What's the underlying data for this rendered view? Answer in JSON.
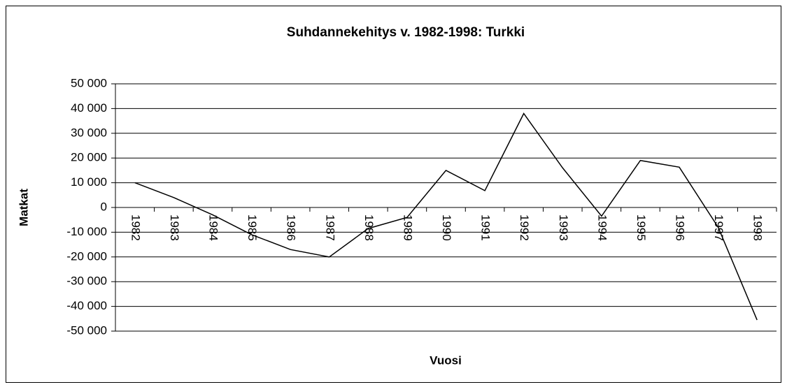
{
  "chart_data": {
    "type": "line",
    "title": "Suhdannekehitys v. 1982-1998: Turkki",
    "x_label": "Vuosi",
    "y_label": "Matkat",
    "categories": [
      "1982",
      "1983",
      "1984",
      "1985",
      "1986",
      "1987",
      "1988",
      "1989",
      "1990",
      "1991",
      "1992",
      "1993",
      "1994",
      "1995",
      "1996",
      "1997",
      "1998"
    ],
    "series": [
      {
        "name": "Turkki",
        "color": "#000000",
        "values": [
          10000,
          4000,
          -3000,
          -11000,
          -17000,
          -20000,
          -8500,
          -4000,
          15000,
          6800,
          38000,
          16000,
          -3500,
          19000,
          16300,
          -8000,
          -45500
        ]
      }
    ],
    "ylim": [
      -50000,
      50000
    ],
    "yticks": [
      {
        "value": -50000,
        "label": "-50 000"
      },
      {
        "value": -40000,
        "label": "-40 000"
      },
      {
        "value": -30000,
        "label": "-30 000"
      },
      {
        "value": -20000,
        "label": "-20 000"
      },
      {
        "value": -10000,
        "label": "-10 000"
      },
      0,
      {
        "value": 10000,
        "label": "10 000"
      },
      {
        "value": 20000,
        "label": "20 000"
      },
      {
        "value": 30000,
        "label": "30 000"
      },
      {
        "value": 40000,
        "label": "40 000"
      },
      {
        "value": 50000,
        "label": "50 000"
      }
    ],
    "grid": true
  }
}
